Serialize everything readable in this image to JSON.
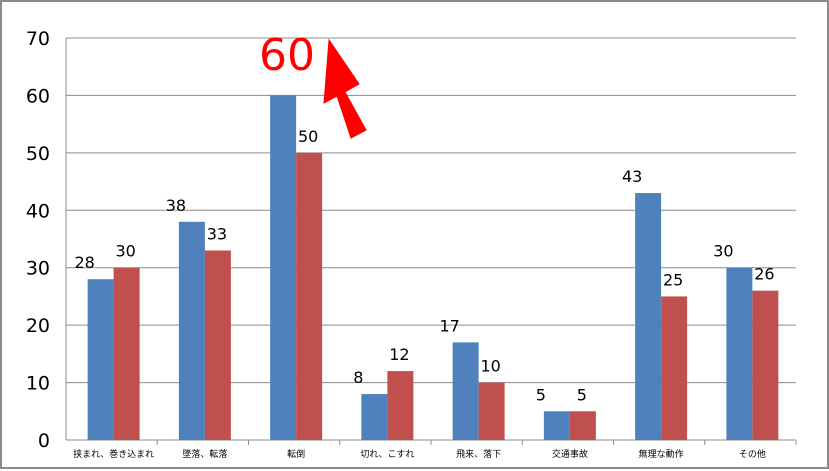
{
  "chart_data": {
    "type": "bar",
    "categories": [
      "挟まれ、巻き込まれ",
      "墜落、転落",
      "転倒",
      "切れ、こすれ",
      "飛来、落下",
      "交通事故",
      "無理な動作",
      "その他"
    ],
    "series": [
      {
        "values": [
          28,
          38,
          60,
          8,
          17,
          5,
          43,
          30
        ],
        "color": "#4f81bd"
      },
      {
        "values": [
          30,
          33,
          50,
          12,
          10,
          5,
          25,
          26
        ],
        "color": "#c0504d"
      }
    ],
    "ylim": [
      0,
      70
    ],
    "yticks": [
      0,
      10,
      20,
      30,
      40,
      50,
      60,
      70
    ],
    "grid": true,
    "annotation": {
      "text": "60",
      "color": "#ff0000",
      "arrow": "up-right"
    }
  }
}
